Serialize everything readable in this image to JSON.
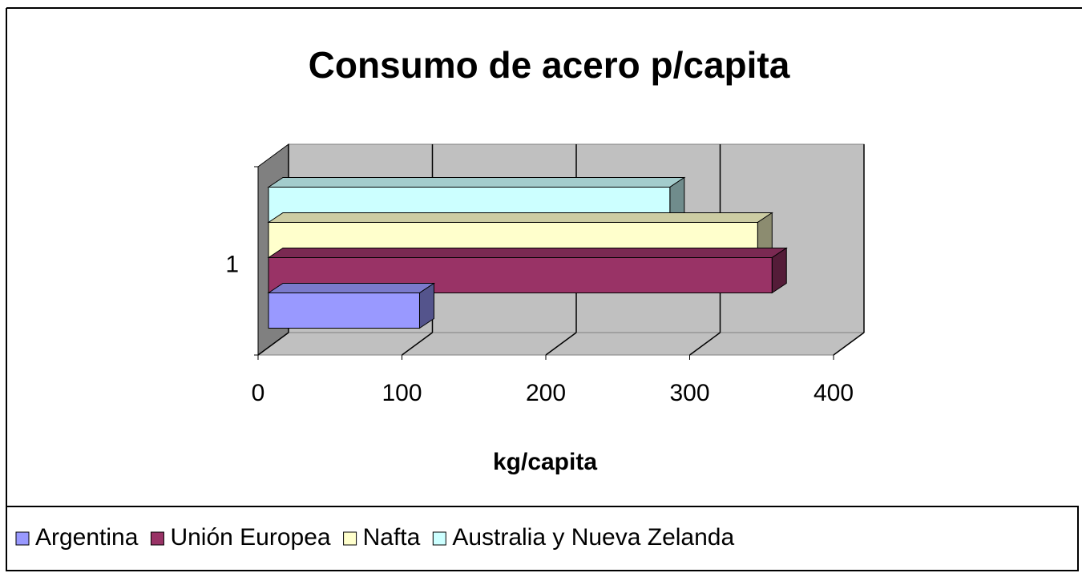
{
  "chart_data": {
    "type": "bar",
    "orientation": "horizontal",
    "three_d": true,
    "title": "Consumo de acero p/capita",
    "categories": [
      "1"
    ],
    "series": [
      {
        "name": "Argentina",
        "color": "#9999ff",
        "values": [
          105
        ]
      },
      {
        "name": "Unión Europea",
        "color": "#993366",
        "values": [
          350
        ]
      },
      {
        "name": "Nafta",
        "color": "#ffffcc",
        "values": [
          340
        ]
      },
      {
        "name": "Australia y Nueva Zelanda",
        "color": "#ccffff",
        "values": [
          279
        ]
      }
    ],
    "xlim": [
      0,
      400
    ],
    "xticks": [
      0,
      100,
      200,
      300,
      400
    ],
    "xlabel": "kg/capita",
    "grid": true,
    "legend": "bottom"
  }
}
